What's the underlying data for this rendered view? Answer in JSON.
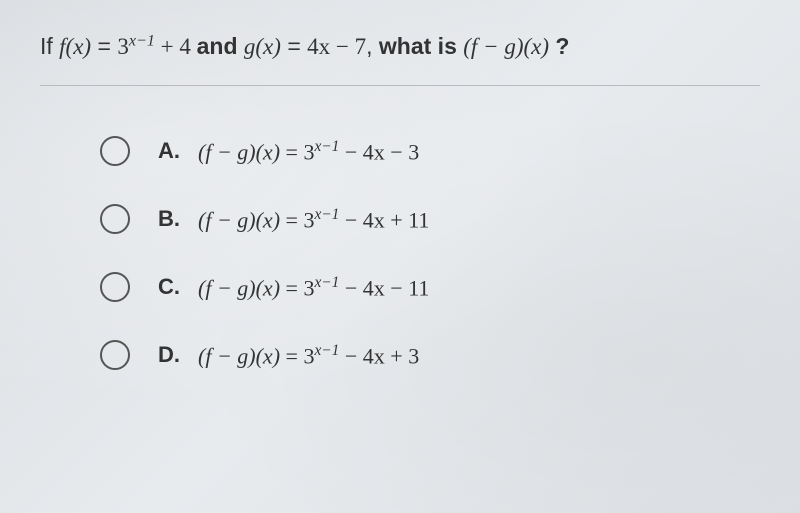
{
  "question": {
    "prefix": "If",
    "f_def_lhs": "f(x)",
    "f_def_eq": "=",
    "f_def_rhs_base": "3",
    "f_def_rhs_exp": "x−1",
    "f_def_rhs_tail": "+ 4",
    "connector": "and",
    "g_def_lhs": "g(x)",
    "g_def_eq": "=",
    "g_def_rhs": "4x − 7",
    "comma": ",",
    "ask": "what is",
    "target": "(f − g)(x)",
    "qmark": "?"
  },
  "options": [
    {
      "letter": "A.",
      "lhs": "(f − g)(x)",
      "eq": "=",
      "base": "3",
      "exp": "x−1",
      "tail": "− 4x − 3"
    },
    {
      "letter": "B.",
      "lhs": "(f − g)(x)",
      "eq": "=",
      "base": "3",
      "exp": "x−1",
      "tail": "− 4x + 11"
    },
    {
      "letter": "C.",
      "lhs": "(f − g)(x)",
      "eq": "=",
      "base": "3",
      "exp": "x−1",
      "tail": "− 4x − 11"
    },
    {
      "letter": "D.",
      "lhs": "(f − g)(x)",
      "eq": "=",
      "base": "3",
      "exp": "x−1",
      "tail": "− 4x + 3"
    }
  ],
  "styling": {
    "background_color": "#dde1e5",
    "text_color": "#333333",
    "divider_color": "#b8bcc0",
    "radio_border_color": "#555555",
    "question_fontsize": 23,
    "option_fontsize": 22,
    "font_family_text": "Arial",
    "font_family_math": "Times New Roman",
    "radio_diameter": 30,
    "option_spacing": 38,
    "options_indent": 60
  }
}
